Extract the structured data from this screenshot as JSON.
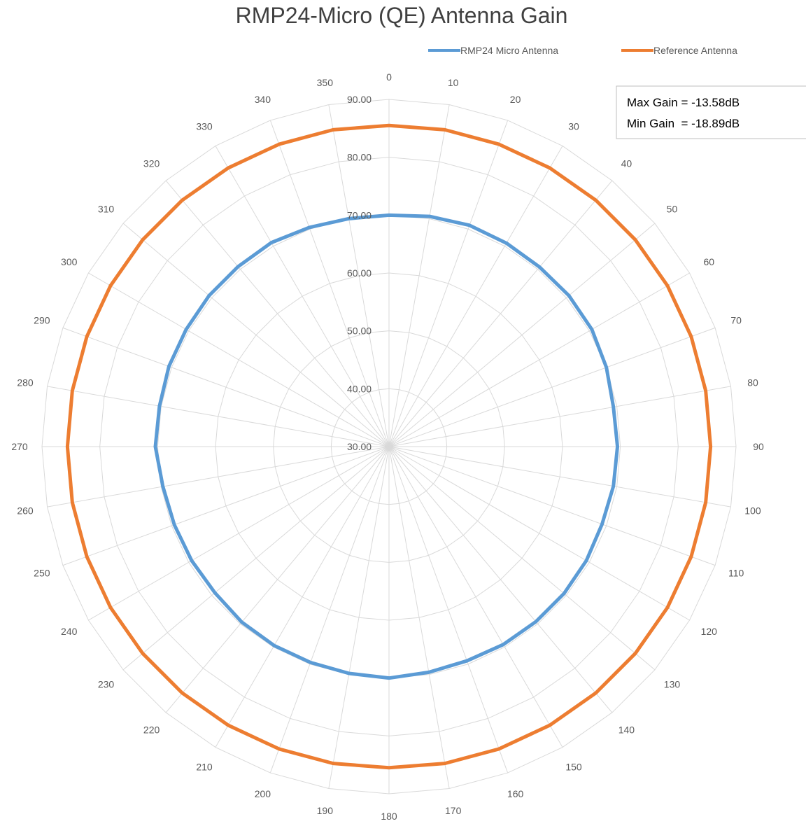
{
  "chart_data": {
    "type": "radar",
    "title": "RMP24-Micro (QE) Antenna Gain",
    "angles": [
      "0",
      "10",
      "20",
      "30",
      "40",
      "50",
      "60",
      "70",
      "80",
      "90",
      "100",
      "110",
      "120",
      "130",
      "140",
      "150",
      "160",
      "170",
      "180",
      "190",
      "200",
      "210",
      "220",
      "230",
      "240",
      "250",
      "260",
      "270",
      "280",
      "290",
      "300",
      "310",
      "320",
      "330",
      "340",
      "350"
    ],
    "radial_ticks": [
      "30.00",
      "40.00",
      "50.00",
      "60.00",
      "70.00",
      "80.00",
      "90.00"
    ],
    "rlim": [
      30,
      90
    ],
    "grid": true,
    "legend_position": "top-right",
    "series": [
      {
        "name": "RMP24 Micro Antenna",
        "color": "#5b9bd5",
        "values": [
          70.0,
          70.4,
          70.7,
          70.6,
          70.5,
          70.6,
          70.5,
          70.0,
          69.4,
          69.5,
          69.4,
          69.2,
          69.4,
          69.5,
          69.5,
          69.5,
          69.4,
          69.6,
          70.0,
          69.8,
          69.7,
          69.7,
          69.6,
          69.3,
          69.4,
          69.5,
          69.7,
          70.4,
          70.3,
          70.5,
          70.5,
          70.6,
          70.6,
          70.7,
          70.3,
          70.0
        ]
      },
      {
        "name": "Reference Antenna",
        "color": "#ed7d31",
        "values": [
          85.5,
          85.6,
          85.6,
          85.6,
          85.6,
          85.6,
          85.6,
          85.6,
          85.6,
          85.6,
          85.6,
          85.6,
          85.6,
          85.6,
          85.6,
          85.6,
          85.6,
          85.6,
          85.5,
          85.6,
          85.6,
          85.6,
          85.6,
          85.6,
          85.6,
          85.6,
          85.6,
          85.6,
          85.6,
          85.6,
          85.6,
          85.6,
          85.6,
          85.6,
          85.6,
          85.6
        ]
      }
    ],
    "annotations": [
      "Max Gain = -13.58dB",
      "Min Gain  = -18.89dB"
    ]
  }
}
